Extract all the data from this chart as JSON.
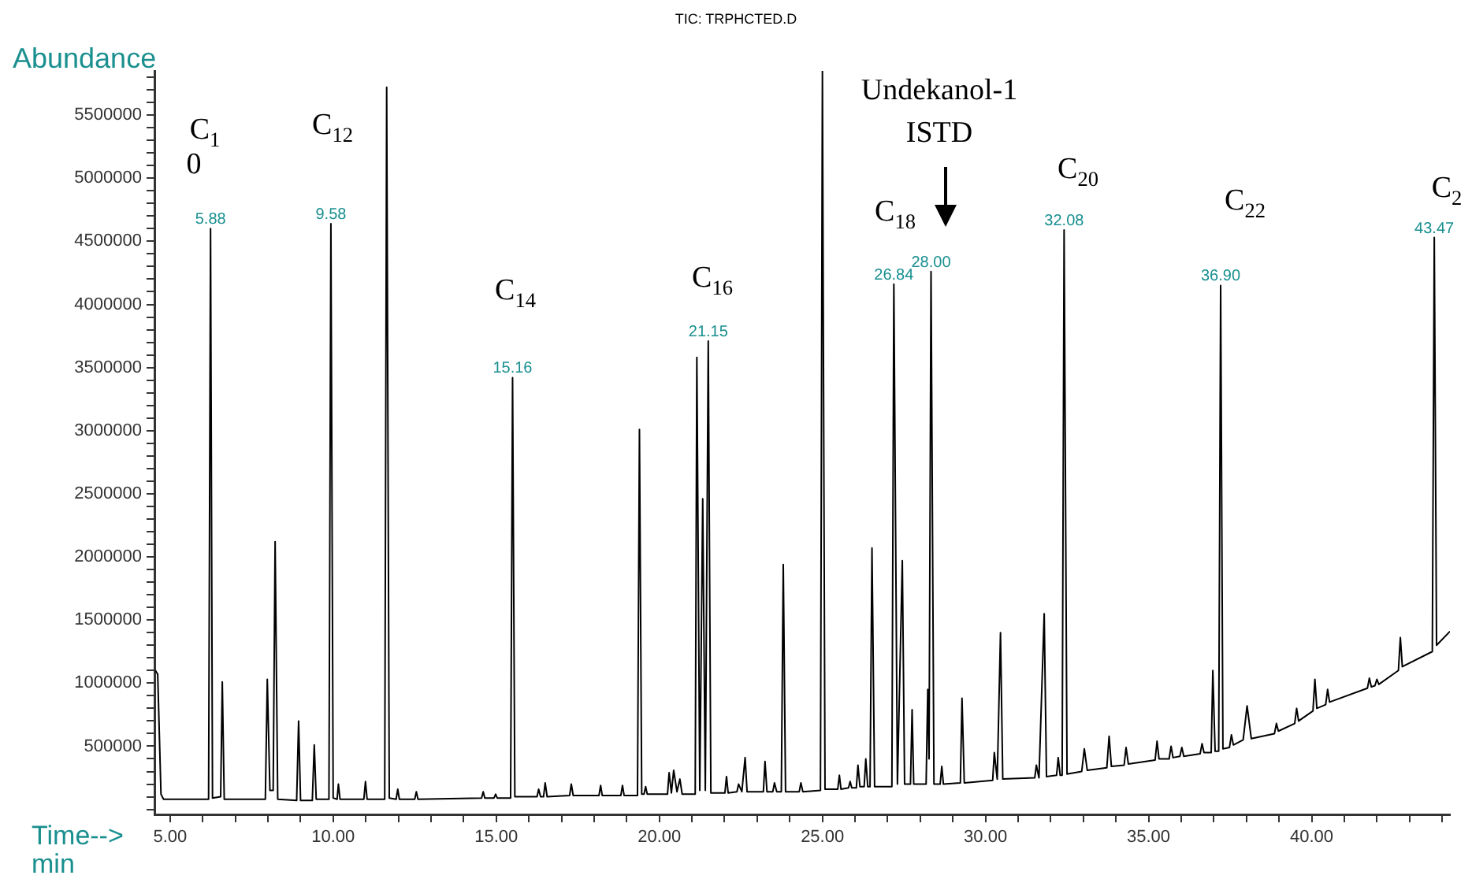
{
  "chart_data": {
    "type": "line",
    "title": "TIC: TRPHCTED.D",
    "xlabel": "Time-->\nmin",
    "ylabel": "Abundance",
    "color": "#000000",
    "marker": "none",
    "xlim": [
      4.52,
      44.24
    ],
    "ylim": [
      -40000,
      5850000
    ],
    "xticks": [
      {
        "value": 5,
        "label": "5.00"
      },
      {
        "value": 6,
        "label": null
      },
      {
        "value": 7,
        "label": null
      },
      {
        "value": 8,
        "label": null
      },
      {
        "value": 9,
        "label": null
      },
      {
        "value": 10,
        "label": "10.00"
      },
      {
        "value": 11,
        "label": null
      },
      {
        "value": 12,
        "label": null
      },
      {
        "value": 13,
        "label": null
      },
      {
        "value": 14,
        "label": null
      },
      {
        "value": 15,
        "label": "15.00"
      },
      {
        "value": 16,
        "label": null
      },
      {
        "value": 17,
        "label": null
      },
      {
        "value": 18,
        "label": null
      },
      {
        "value": 19,
        "label": null
      },
      {
        "value": 20,
        "label": "20.00"
      },
      {
        "value": 21,
        "label": null
      },
      {
        "value": 22,
        "label": null
      },
      {
        "value": 23,
        "label": null
      },
      {
        "value": 24,
        "label": null
      },
      {
        "value": 25,
        "label": "25.00"
      },
      {
        "value": 26,
        "label": null
      },
      {
        "value": 27,
        "label": null
      },
      {
        "value": 28,
        "label": null
      },
      {
        "value": 29,
        "label": null
      },
      {
        "value": 30,
        "label": "30.00"
      },
      {
        "value": 31,
        "label": null
      },
      {
        "value": 32,
        "label": null
      },
      {
        "value": 33,
        "label": null
      },
      {
        "value": 34,
        "label": null
      },
      {
        "value": 35,
        "label": "35.00"
      },
      {
        "value": 36,
        "label": null
      },
      {
        "value": 37,
        "label": null
      },
      {
        "value": 38,
        "label": null
      },
      {
        "value": 39,
        "label": null
      },
      {
        "value": 40,
        "label": "40.00"
      },
      {
        "value": 41,
        "label": null
      },
      {
        "value": 42,
        "label": null
      },
      {
        "value": 43,
        "label": null
      },
      {
        "value": 44,
        "label": null
      }
    ],
    "yticks": [
      {
        "value": 0,
        "label": null
      },
      {
        "value": 100000,
        "label": null
      },
      {
        "value": 200000,
        "label": null
      },
      {
        "value": 300000,
        "label": null
      },
      {
        "value": 400000,
        "label": null
      },
      500000,
      {
        "value": 600000,
        "label": null
      },
      {
        "value": 700000,
        "label": null
      },
      {
        "value": 800000,
        "label": null
      },
      {
        "value": 900000,
        "label": null
      },
      1000000,
      {
        "value": 1100000,
        "label": null
      },
      {
        "value": 1200000,
        "label": null
      },
      {
        "value": 1300000,
        "label": null
      },
      {
        "value": 1400000,
        "label": null
      },
      1500000,
      {
        "value": 1600000,
        "label": null
      },
      {
        "value": 1700000,
        "label": null
      },
      {
        "value": 1800000,
        "label": null
      },
      {
        "value": 1900000,
        "label": null
      },
      2000000,
      {
        "value": 2100000,
        "label": null
      },
      {
        "value": 2200000,
        "label": null
      },
      {
        "value": 2300000,
        "label": null
      },
      {
        "value": 2400000,
        "label": null
      },
      2500000,
      {
        "value": 2600000,
        "label": null
      },
      {
        "value": 2700000,
        "label": null
      },
      {
        "value": 2800000,
        "label": null
      },
      {
        "value": 2900000,
        "label": null
      },
      3000000,
      {
        "value": 3100000,
        "label": null
      },
      {
        "value": 3200000,
        "label": null
      },
      {
        "value": 3300000,
        "label": null
      },
      {
        "value": 3400000,
        "label": null
      },
      3500000,
      {
        "value": 3600000,
        "label": null
      },
      {
        "value": 3700000,
        "label": null
      },
      {
        "value": 3800000,
        "label": null
      },
      {
        "value": 3900000,
        "label": null
      },
      4000000,
      {
        "value": 4100000,
        "label": null
      },
      {
        "value": 4200000,
        "label": null
      },
      {
        "value": 4300000,
        "label": null
      },
      {
        "value": 4400000,
        "label": null
      },
      4500000,
      {
        "value": 4600000,
        "label": null
      },
      {
        "value": 4700000,
        "label": null
      },
      {
        "value": 4800000,
        "label": null
      },
      {
        "value": 4900000,
        "label": null
      },
      5000000,
      {
        "value": 5100000,
        "label": null
      },
      {
        "value": 5200000,
        "label": null
      },
      {
        "value": 5300000,
        "label": null
      },
      {
        "value": 5400000,
        "label": null
      },
      5500000,
      {
        "value": 5600000,
        "label": null
      },
      {
        "value": 5700000,
        "label": null
      },
      {
        "value": 5800000,
        "label": null
      }
    ],
    "x": [
      4.55,
      4.62,
      4.72,
      4.8,
      6.18,
      6.24,
      6.3,
      6.55,
      6.6,
      6.66,
      7.92,
      7.98,
      8.06,
      8.16,
      8.22,
      8.3,
      8.88,
      8.94,
      9.0,
      9.36,
      9.42,
      9.48,
      9.87,
      9.93,
      10.0,
      10.12,
      10.16,
      10.21,
      10.94,
      10.99,
      11.04,
      11.58,
      11.64,
      11.72,
      11.93,
      11.98,
      12.03,
      12.5,
      12.55,
      12.6,
      14.55,
      14.6,
      14.65,
      14.93,
      14.98,
      15.03,
      15.44,
      15.5,
      15.57,
      16.25,
      16.3,
      16.36,
      16.45,
      16.5,
      16.56,
      17.25,
      17.3,
      17.36,
      18.15,
      18.2,
      18.25,
      18.82,
      18.87,
      18.92,
      19.33,
      19.39,
      19.46,
      19.53,
      19.58,
      19.63,
      20.25,
      20.3,
      20.37,
      20.44,
      20.54,
      20.63,
      20.7,
      21.1,
      21.15,
      21.24,
      21.33,
      21.41,
      21.5,
      21.58,
      22.01,
      22.06,
      22.11,
      22.38,
      22.43,
      22.53,
      22.63,
      22.69,
      23.19,
      23.24,
      23.3,
      23.48,
      23.53,
      23.6,
      23.74,
      23.8,
      23.87,
      24.29,
      24.34,
      24.4,
      24.94,
      25.0,
      25.08,
      25.47,
      25.52,
      25.57,
      25.8,
      25.85,
      25.9,
      26.04,
      26.09,
      26.15,
      26.28,
      26.33,
      26.39,
      26.46,
      26.52,
      26.6,
      27.13,
      27.19,
      27.3,
      27.45,
      27.52,
      27.7,
      27.75,
      27.8,
      28.18,
      28.23,
      28.27,
      28.33,
      28.42,
      28.61,
      28.66,
      28.71,
      29.23,
      29.28,
      29.35,
      30.22,
      30.27,
      30.36,
      30.46,
      30.53,
      31.51,
      31.56,
      31.64,
      31.8,
      31.87,
      32.18,
      32.23,
      32.29,
      32.35,
      32.41,
      32.5,
      32.95,
      33.03,
      33.12,
      33.72,
      33.79,
      33.86,
      34.25,
      34.31,
      34.38,
      35.2,
      35.26,
      35.32,
      35.63,
      35.69,
      35.75,
      35.96,
      36.02,
      36.08,
      36.58,
      36.64,
      36.7,
      36.92,
      36.97,
      37.04,
      37.15,
      37.21,
      37.28,
      37.48,
      37.54,
      37.6,
      37.9,
      38.02,
      38.15,
      38.86,
      38.92,
      38.98,
      39.48,
      39.54,
      39.6,
      40.04,
      40.1,
      40.16,
      40.43,
      40.49,
      40.55,
      41.71,
      41.77,
      41.83,
      41.94,
      42.0,
      42.06,
      42.66,
      42.72,
      42.78,
      43.7,
      43.76,
      43.83,
      44.24
    ],
    "values": [
      1100000,
      1070000,
      120000,
      80000,
      80000,
      4600000,
      90000,
      100000,
      1010000,
      80000,
      80000,
      1030000,
      150000,
      150000,
      2120000,
      80000,
      70000,
      700000,
      70000,
      70000,
      510000,
      80000,
      80000,
      4640000,
      90000,
      80000,
      200000,
      80000,
      80000,
      220000,
      80000,
      80000,
      5720000,
      90000,
      80000,
      160000,
      80000,
      80000,
      140000,
      80000,
      90000,
      140000,
      90000,
      90000,
      120000,
      90000,
      90000,
      3420000,
      100000,
      100000,
      160000,
      100000,
      100000,
      210000,
      100000,
      110000,
      200000,
      110000,
      110000,
      190000,
      110000,
      110000,
      190000,
      110000,
      110000,
      3010000,
      120000,
      120000,
      180000,
      120000,
      120000,
      290000,
      130000,
      310000,
      140000,
      240000,
      120000,
      120000,
      3580000,
      150000,
      2460000,
      150000,
      3710000,
      130000,
      130000,
      260000,
      130000,
      140000,
      200000,
      140000,
      410000,
      140000,
      140000,
      380000,
      140000,
      140000,
      210000,
      140000,
      140000,
      1940000,
      140000,
      140000,
      210000,
      140000,
      150000,
      5850000,
      160000,
      160000,
      270000,
      160000,
      170000,
      220000,
      170000,
      170000,
      350000,
      180000,
      180000,
      400000,
      180000,
      180000,
      2070000,
      180000,
      180000,
      4160000,
      200000,
      1970000,
      200000,
      200000,
      790000,
      200000,
      200000,
      950000,
      400000,
      4260000,
      200000,
      200000,
      340000,
      200000,
      210000,
      880000,
      210000,
      230000,
      450000,
      240000,
      1400000,
      240000,
      250000,
      350000,
      250000,
      1550000,
      260000,
      270000,
      410000,
      270000,
      270000,
      4590000,
      280000,
      300000,
      480000,
      310000,
      330000,
      580000,
      340000,
      350000,
      490000,
      360000,
      390000,
      540000,
      400000,
      400000,
      500000,
      410000,
      420000,
      490000,
      420000,
      440000,
      520000,
      450000,
      450000,
      1100000,
      460000,
      460000,
      4150000,
      480000,
      490000,
      590000,
      510000,
      550000,
      820000,
      560000,
      600000,
      680000,
      620000,
      680000,
      800000,
      700000,
      780000,
      1030000,
      800000,
      830000,
      950000,
      850000,
      960000,
      1040000,
      970000,
      980000,
      1030000,
      990000,
      1100000,
      1360000,
      1130000,
      1250000,
      4530000,
      1300000,
      1410000
    ],
    "annotations": [
      {
        "text": "5.88",
        "x": 6.24,
        "y": 4600000
      },
      {
        "text": "9.58",
        "x": 9.93,
        "y": 4640000
      },
      {
        "text": "15.16",
        "x": 15.5,
        "y": 3420000
      },
      {
        "text": "21.15",
        "x": 21.5,
        "y": 3710000
      },
      {
        "text": "26.84",
        "x": 27.19,
        "y": 4160000
      },
      {
        "text": "28.00",
        "x": 28.33,
        "y": 4260000
      },
      {
        "text": "32.08",
        "x": 32.41,
        "y": 4590000
      },
      {
        "text": "36.90",
        "x": 37.21,
        "y": 4150000
      },
      {
        "text": "43.47",
        "x": 43.76,
        "y": 4530000
      },
      "C$_{1}$",
      "0",
      "C$_{12}$",
      "C$_{14}$",
      "C$_{16}$",
      "Undekanol-1\nISTD",
      "C$_{18}$",
      "C$_{20}$",
      "C$_{22}$",
      "C$_{2}$"
    ]
  }
}
